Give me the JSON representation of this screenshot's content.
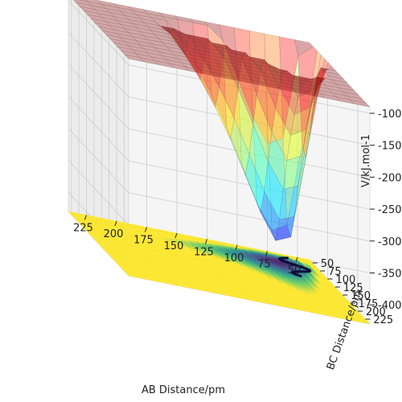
{
  "chart_data": {
    "type": "surface3d",
    "title": "",
    "xlabel": "AB Distance/pm",
    "ylabel": "BC Distance/pm",
    "zlabel": "V/kJ.mol-1",
    "x_ticks": [
      "225",
      "200",
      "175",
      "150",
      "125",
      "100",
      "75",
      "50"
    ],
    "y_ticks": [
      "50",
      "75",
      "100",
      "125",
      "150",
      "175",
      "200",
      "225"
    ],
    "z_ticks": [
      "-100",
      "-150",
      "-200",
      "-250",
      "-300",
      "-350",
      "-400"
    ],
    "xlim": [
      40,
      240
    ],
    "ylim": [
      40,
      240
    ],
    "zlim": [
      -430,
      -90
    ],
    "grid": true,
    "surface_colormap": "jet",
    "contour_colormap": "viridis",
    "contour_offset": -430
  }
}
